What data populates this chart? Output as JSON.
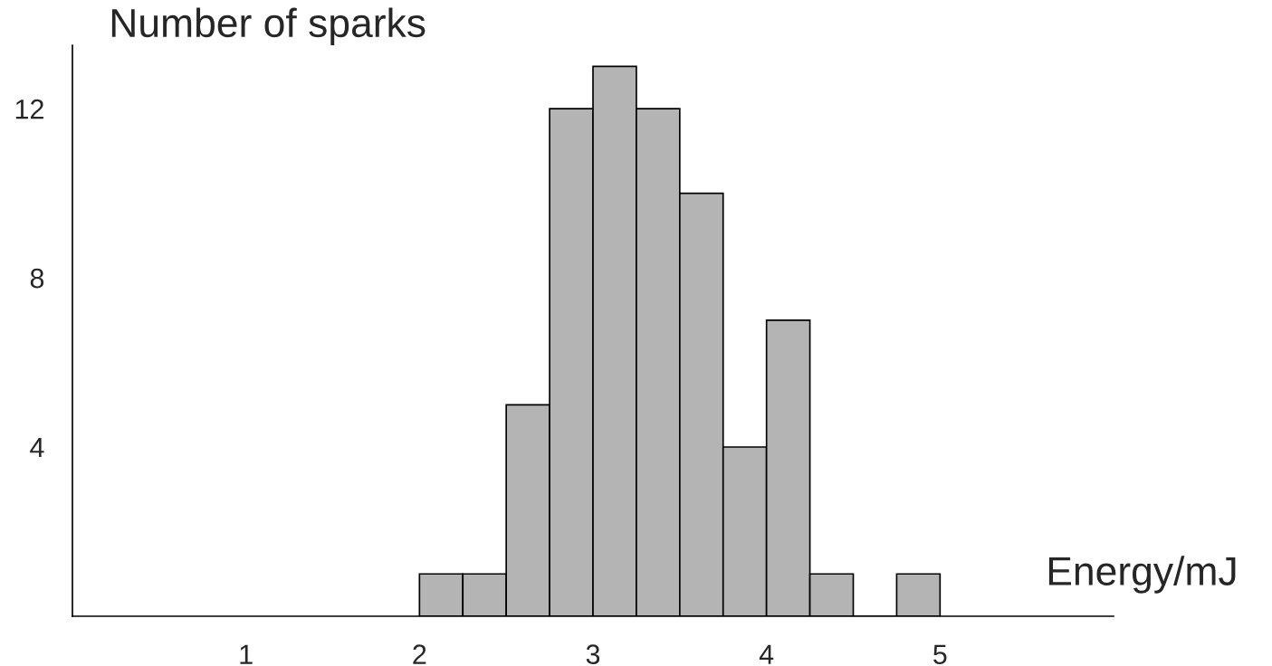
{
  "chart_data": {
    "type": "histogram",
    "ylabel": "Number of sparks",
    "xlabel": "Energy/mJ",
    "bins": [
      2.0,
      2.25,
      2.5,
      2.75,
      3.0,
      3.25,
      3.5,
      3.75,
      4.0,
      4.25,
      4.5,
      4.75,
      5.0
    ],
    "values": [
      1,
      1,
      5,
      12,
      13,
      12,
      10,
      4,
      7,
      1,
      0,
      1
    ],
    "color": "#b4b4b4",
    "xlim": [
      0,
      6
    ],
    "xticks": [
      1,
      2,
      3,
      4,
      5
    ],
    "ylim": [
      0,
      13.5
    ],
    "yticks": [
      4,
      8,
      12
    ],
    "grid": false,
    "legend": false
  }
}
